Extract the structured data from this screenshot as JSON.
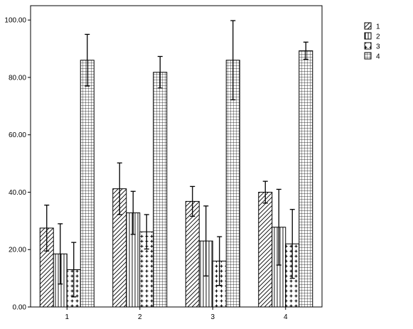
{
  "chart_data": {
    "type": "bar",
    "categories": [
      "1",
      "2",
      "3",
      "4"
    ],
    "series": [
      {
        "name": "1",
        "pattern": "diag",
        "values": [
          27.5,
          41.2,
          36.8,
          40.0
        ],
        "error": [
          8.0,
          9.0,
          5.2,
          3.8
        ]
      },
      {
        "name": "2",
        "pattern": "vert",
        "values": [
          18.5,
          32.8,
          23.0,
          27.8
        ],
        "error": [
          10.5,
          7.5,
          12.2,
          13.2
        ]
      },
      {
        "name": "3",
        "pattern": "plus",
        "values": [
          13.0,
          26.2,
          16.0,
          22.0
        ],
        "error": [
          9.5,
          6.0,
          8.5,
          12.0
        ]
      },
      {
        "name": "4",
        "pattern": "grid",
        "values": [
          86.0,
          81.8,
          86.0,
          89.3
        ],
        "error": [
          9.0,
          5.5,
          13.8,
          3.0
        ]
      }
    ],
    "yticks": [
      "0.00",
      "20.00",
      "40.00",
      "60.00",
      "80.00",
      "100.00"
    ],
    "ylim": [
      0,
      105
    ],
    "title": "",
    "xlabel": "",
    "ylabel": "",
    "legend_position": "top-right",
    "grid": false
  }
}
